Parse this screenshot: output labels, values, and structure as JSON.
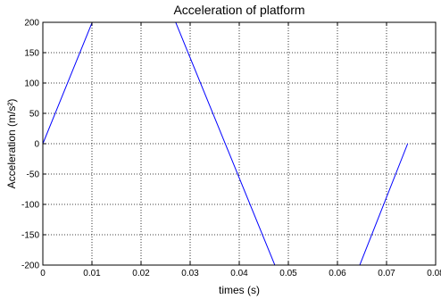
{
  "chart_data": {
    "type": "line",
    "title": "Acceleration of platform",
    "xlabel": "times (s)",
    "ylabel": "Acceleration (m/s²)",
    "xlim": [
      0,
      0.08
    ],
    "ylim": [
      -200,
      200
    ],
    "xticks": [
      0,
      0.01,
      0.02,
      0.03,
      0.04,
      0.05,
      0.06,
      0.07,
      0.08
    ],
    "xtick_labels": [
      "0",
      "0.01",
      "0.02",
      "0.03",
      "0.04",
      "0.05",
      "0.06",
      "0.07",
      "0.08"
    ],
    "yticks": [
      200,
      150,
      100,
      50,
      0,
      -50,
      -100,
      -150,
      -200
    ],
    "ytick_labels": [
      "200",
      "150",
      "100",
      "50",
      "0",
      "-50",
      "-100",
      "-150",
      "-200"
    ],
    "grid": true,
    "grid_style": "dotted",
    "series": [
      {
        "color": "#0000ff",
        "x": [
          0,
          0.0103,
          0.0268,
          0.0475,
          0.0643,
          0.0743
        ],
        "y": [
          0,
          205,
          205,
          -205,
          -205,
          0
        ]
      }
    ]
  }
}
